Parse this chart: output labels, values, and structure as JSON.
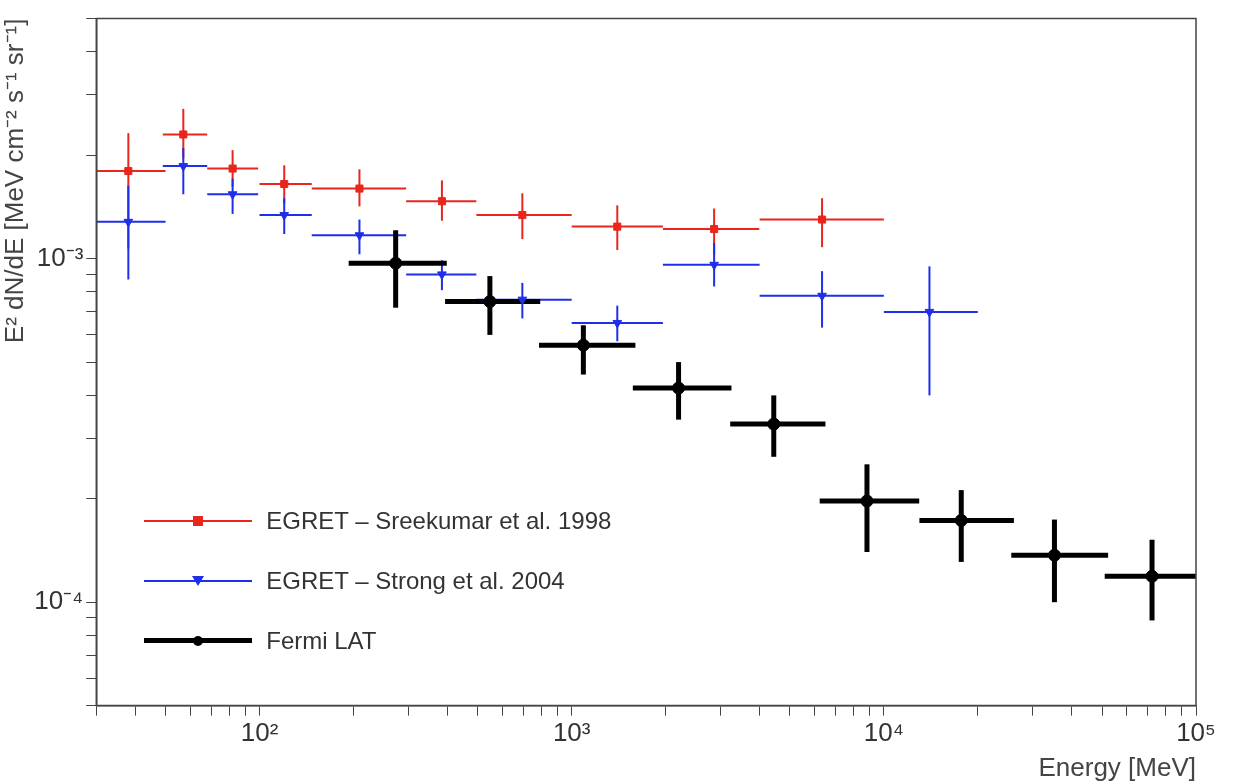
{
  "chart_data": {
    "type": "scatter",
    "xlabel": "Energy [MeV]",
    "ylabel": "E² dN/dE [MeV cm⁻² s⁻¹ sr⁻¹]",
    "log": "xy",
    "grid": false,
    "legend": "bottom left",
    "xlim": [
      30,
      100000
    ],
    "ylim": [
      5e-05,
      0.005
    ],
    "xticks": [
      {
        "value": 30,
        "label": null
      },
      {
        "value": 40,
        "label": null
      },
      {
        "value": 50,
        "label": null
      },
      {
        "value": 60,
        "label": null
      },
      {
        "value": 70,
        "label": null
      },
      {
        "value": 80,
        "label": null
      },
      {
        "value": 90,
        "label": null
      },
      {
        "value": 100,
        "label": "10²"
      },
      {
        "value": 200,
        "label": null
      },
      {
        "value": 300,
        "label": null
      },
      {
        "value": 400,
        "label": null
      },
      {
        "value": 500,
        "label": null
      },
      {
        "value": 600,
        "label": null
      },
      {
        "value": 700,
        "label": null
      },
      {
        "value": 800,
        "label": null
      },
      {
        "value": 900,
        "label": null
      },
      {
        "value": 1000,
        "label": "10³"
      },
      {
        "value": 2000,
        "label": null
      },
      {
        "value": 3000,
        "label": null
      },
      {
        "value": 4000,
        "label": null
      },
      {
        "value": 5000,
        "label": null
      },
      {
        "value": 6000,
        "label": null
      },
      {
        "value": 7000,
        "label": null
      },
      {
        "value": 8000,
        "label": null
      },
      {
        "value": 9000,
        "label": null
      },
      {
        "value": 10000,
        "label": "10⁴"
      },
      {
        "value": 20000,
        "label": null
      },
      {
        "value": 30000,
        "label": null
      },
      {
        "value": 40000,
        "label": null
      },
      {
        "value": 50000,
        "label": null
      },
      {
        "value": 60000,
        "label": null
      },
      {
        "value": 70000,
        "label": null
      },
      {
        "value": 80000,
        "label": null
      },
      {
        "value": 90000,
        "label": null
      },
      {
        "value": 100000,
        "label": "10⁵"
      }
    ],
    "yticks": [
      {
        "value": 5e-05,
        "label": null
      },
      {
        "value": 6e-05,
        "label": null
      },
      {
        "value": 7e-05,
        "label": null
      },
      {
        "value": 8e-05,
        "label": null
      },
      {
        "value": 9e-05,
        "label": null
      },
      {
        "value": 0.0001,
        "label": "10⁻⁴"
      },
      {
        "value": 0.0002,
        "label": null
      },
      {
        "value": 0.0003,
        "label": null
      },
      {
        "value": 0.0004,
        "label": null
      },
      {
        "value": 0.0005,
        "label": null
      },
      {
        "value": 0.0006,
        "label": null
      },
      {
        "value": 0.0007,
        "label": null
      },
      {
        "value": 0.0008,
        "label": null
      },
      {
        "value": 0.0009,
        "label": null
      },
      {
        "value": 0.001,
        "label": "10⁻³"
      },
      {
        "value": 0.002,
        "label": null
      },
      {
        "value": 0.003,
        "label": null
      },
      {
        "value": 0.004,
        "label": null
      },
      {
        "value": 0.005,
        "label": null
      }
    ],
    "series": [
      {
        "name": "EGRET – Sreekumar et al. 1998",
        "color": "#e8261c",
        "marker": "square",
        "x": [
          38,
          57,
          82,
          120,
          209,
          384,
          695,
          1400,
          2860,
          6340
        ],
        "values": [
          0.0018,
          0.0023,
          0.00183,
          0.00165,
          0.0016,
          0.00147,
          0.00134,
          0.00124,
          0.00122,
          0.0013
        ],
        "errors": [
          [
            0.00107,
            0.00232
          ],
          [
            0.00196,
            0.00273
          ],
          [
            0.00162,
            0.00207
          ],
          [
            0.00145,
            0.00187
          ],
          [
            0.00142,
            0.00182
          ],
          [
            0.00129,
            0.00169
          ],
          [
            0.00114,
            0.00155
          ],
          [
            0.00106,
            0.00143
          ],
          [
            0.00103,
            0.0014
          ],
          [
            0.00108,
            0.0015
          ]
        ],
        "xerrors": [
          [
            30,
            50
          ],
          [
            49,
            68
          ],
          [
            68,
            99
          ],
          [
            100,
            147
          ],
          [
            147,
            295
          ],
          [
            295,
            495
          ],
          [
            495,
            1000
          ],
          [
            1000,
            1960
          ],
          [
            1960,
            3990
          ],
          [
            4000,
            10000
          ]
        ]
      },
      {
        "name": "EGRET – Strong et al. 2004",
        "color": "#1f2ee8",
        "marker": "triangle",
        "x": [
          38,
          57,
          82,
          120,
          209,
          384,
          695,
          1400,
          2860,
          6340,
          14000
        ],
        "values": [
          0.00128,
          0.00186,
          0.00154,
          0.00134,
          0.00117,
          0.0009,
          0.00076,
          0.00065,
          0.00096,
          0.00078,
          0.0007
        ],
        "errors": [
          [
            0.00087,
            0.00163
          ],
          [
            0.00154,
            0.0021
          ],
          [
            0.00135,
            0.00171
          ],
          [
            0.00118,
            0.0015
          ],
          [
            0.00103,
            0.0013
          ],
          [
            0.00081,
            0.00099
          ],
          [
            0.00067,
            0.00085
          ],
          [
            0.000575,
            0.00073
          ],
          [
            0.00083,
            0.00111
          ],
          [
            0.00063,
            0.00092
          ],
          [
            0.0004,
            0.00095
          ]
        ],
        "xerrors": [
          [
            30,
            50
          ],
          [
            49,
            68
          ],
          [
            68,
            99
          ],
          [
            100,
            147
          ],
          [
            147,
            295
          ],
          [
            295,
            495
          ],
          [
            495,
            1000
          ],
          [
            1000,
            1960
          ],
          [
            1960,
            4000
          ],
          [
            4000,
            10000
          ],
          [
            10000,
            20000
          ]
        ]
      },
      {
        "name": "Fermi LAT",
        "color": "#000000",
        "marker": "circle",
        "x": [
          273,
          547,
          1090,
          2200,
          4440,
          8830,
          17700,
          35200,
          72300
        ],
        "values": [
          0.00097,
          0.00075,
          0.00056,
          0.00042,
          0.00033,
          0.000197,
          0.000173,
          0.000137,
          0.000119
        ],
        "errors": [
          [
            0.00072,
            0.00121
          ],
          [
            0.0006,
            0.00089
          ],
          [
            0.00046,
            0.00064
          ],
          [
            0.00034,
            0.0005
          ],
          [
            0.000265,
            0.0004
          ],
          [
            0.00014,
            0.000252
          ],
          [
            0.000131,
            0.000212
          ],
          [
            0.0001,
            0.000174
          ],
          [
            8.85e-05,
            0.000152
          ]
        ],
        "xerrors": [
          [
            193,
            398
          ],
          [
            393,
            793
          ],
          [
            786,
            1600
          ],
          [
            1570,
            3250
          ],
          [
            3220,
            6500
          ],
          [
            6230,
            12980
          ],
          [
            13000,
            26100
          ],
          [
            25600,
            52300
          ],
          [
            51000,
            100000
          ]
        ]
      }
    ]
  }
}
